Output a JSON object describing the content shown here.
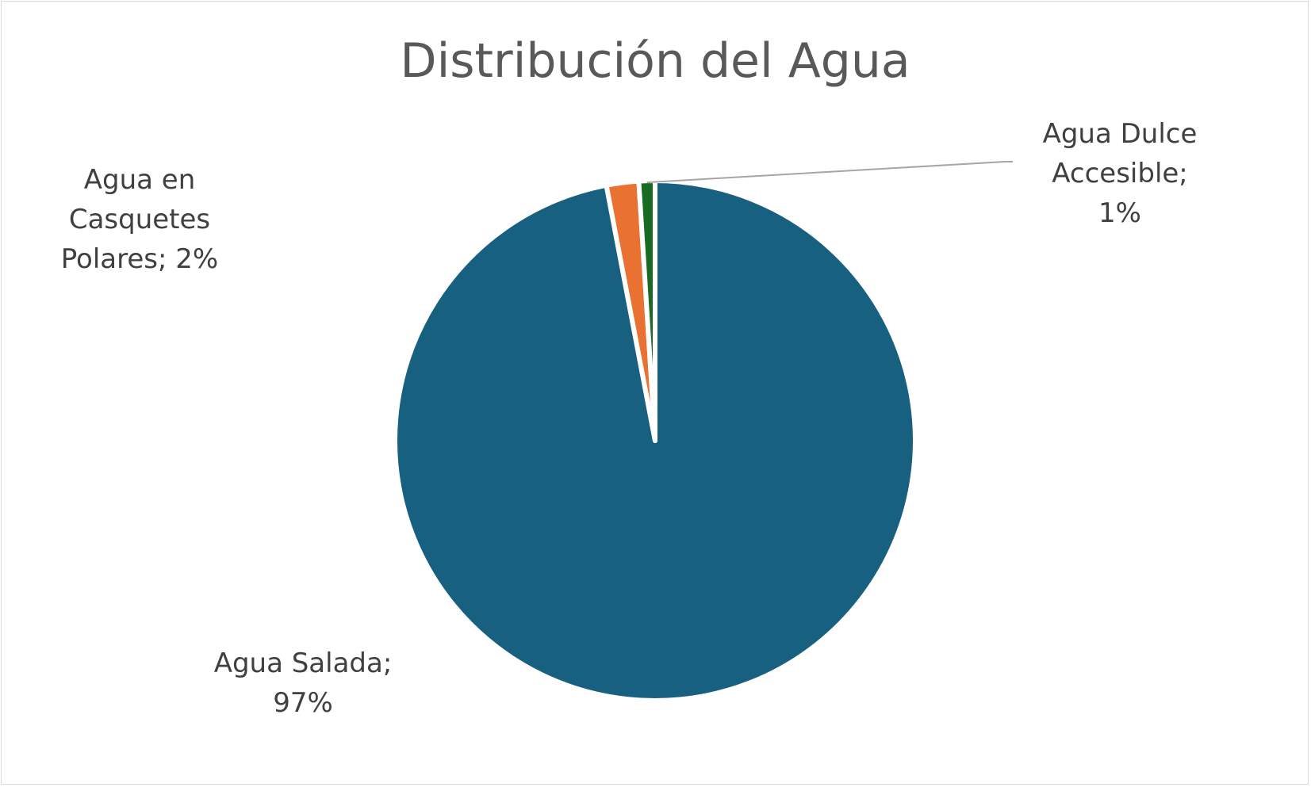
{
  "chart_data": {
    "type": "pie",
    "title": "Distribución del Agua",
    "categories": [
      "Agua Salada",
      "Agua en Casquetes Polares",
      "Agua Dulce Accesible"
    ],
    "values": [
      97,
      2,
      1
    ],
    "value_unit": "%",
    "colors": [
      "#17607f",
      "#e97132",
      "#196b24"
    ],
    "data_labels": [
      {
        "lines": [
          "Agua Salada;",
          "97%"
        ]
      },
      {
        "lines": [
          "Agua en",
          "Casquetes",
          "Polares; 2%"
        ]
      },
      {
        "lines": [
          "Agua Dulce",
          "Accesible;",
          "1%"
        ]
      }
    ],
    "start_angle_deg": 0,
    "direction": "clockwise",
    "legend": "none",
    "leader_line_color": "#a6a6a6"
  }
}
